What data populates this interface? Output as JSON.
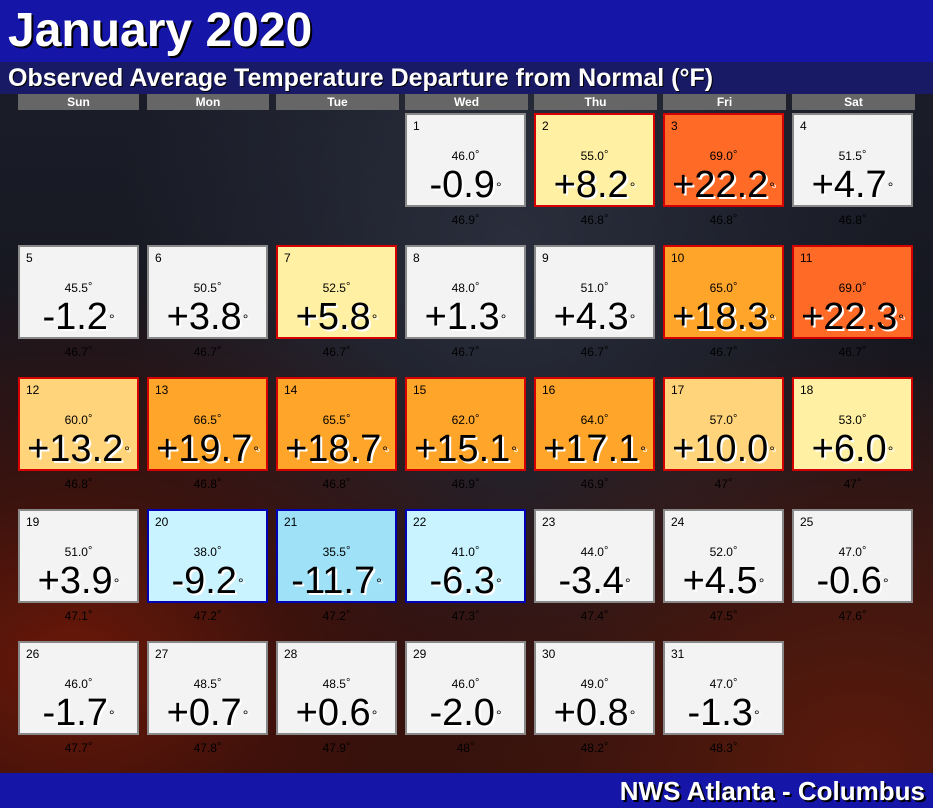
{
  "header": {
    "title": "January 2020",
    "subtitle": "Observed Average Temperature Departure from Normal (°F)"
  },
  "weekdays": [
    "Sun",
    "Mon",
    "Tue",
    "Wed",
    "Thu",
    "Fri",
    "Sat"
  ],
  "degree_symbol": "°",
  "footer": {
    "credit": "NWS Atlanta - Columbus"
  },
  "colors": {
    "neutral": "#f3f3f3",
    "warm_light": "#fff0a3",
    "warm_med": "#ffd47a",
    "warm_orange": "#ffa52a",
    "hot": "#ff6a26",
    "cool_light": "#c9f3ff",
    "cool_med": "#9fe2f7",
    "border_warm": "#d40000",
    "border_cool": "#0000b4",
    "border_neutral": "#888888",
    "title_bar": "#1515a8",
    "subtitle_bar": "#191a66"
  },
  "first_weekday_index": 3,
  "days": [
    {
      "day": "1",
      "observed": "46.0",
      "departure": "-0.9",
      "normal": "46.9",
      "category": "neutral"
    },
    {
      "day": "2",
      "observed": "55.0",
      "departure": "+8.2",
      "normal": "46.8",
      "category": "warm_light"
    },
    {
      "day": "3",
      "observed": "69.0",
      "departure": "+22.2",
      "normal": "46.8",
      "category": "hot"
    },
    {
      "day": "4",
      "observed": "51.5",
      "departure": "+4.7",
      "normal": "46.8",
      "category": "neutral"
    },
    {
      "day": "5",
      "observed": "45.5",
      "departure": "-1.2",
      "normal": "46.7",
      "category": "neutral"
    },
    {
      "day": "6",
      "observed": "50.5",
      "departure": "+3.8",
      "normal": "46.7",
      "category": "neutral"
    },
    {
      "day": "7",
      "observed": "52.5",
      "departure": "+5.8",
      "normal": "46.7",
      "category": "warm_light"
    },
    {
      "day": "8",
      "observed": "48.0",
      "departure": "+1.3",
      "normal": "46.7",
      "category": "neutral"
    },
    {
      "day": "9",
      "observed": "51.0",
      "departure": "+4.3",
      "normal": "46.7",
      "category": "neutral"
    },
    {
      "day": "10",
      "observed": "65.0",
      "departure": "+18.3",
      "normal": "46.7",
      "category": "warm_orange"
    },
    {
      "day": "11",
      "observed": "69.0",
      "departure": "+22.3",
      "normal": "46.7",
      "category": "hot"
    },
    {
      "day": "12",
      "observed": "60.0",
      "departure": "+13.2",
      "normal": "46.8",
      "category": "warm_med"
    },
    {
      "day": "13",
      "observed": "66.5",
      "departure": "+19.7",
      "normal": "46.8",
      "category": "warm_orange"
    },
    {
      "day": "14",
      "observed": "65.5",
      "departure": "+18.7",
      "normal": "46.8",
      "category": "warm_orange"
    },
    {
      "day": "15",
      "observed": "62.0",
      "departure": "+15.1",
      "normal": "46.9",
      "category": "warm_orange"
    },
    {
      "day": "16",
      "observed": "64.0",
      "departure": "+17.1",
      "normal": "46.9",
      "category": "warm_orange"
    },
    {
      "day": "17",
      "observed": "57.0",
      "departure": "+10.0",
      "normal": "47",
      "category": "warm_med"
    },
    {
      "day": "18",
      "observed": "53.0",
      "departure": "+6.0",
      "normal": "47",
      "category": "warm_light"
    },
    {
      "day": "19",
      "observed": "51.0",
      "departure": "+3.9",
      "normal": "47.1",
      "category": "neutral"
    },
    {
      "day": "20",
      "observed": "38.0",
      "departure": "-9.2",
      "normal": "47.2",
      "category": "cool_light"
    },
    {
      "day": "21",
      "observed": "35.5",
      "departure": "-11.7",
      "normal": "47.2",
      "category": "cool_med"
    },
    {
      "day": "22",
      "observed": "41.0",
      "departure": "-6.3",
      "normal": "47.3",
      "category": "cool_light"
    },
    {
      "day": "23",
      "observed": "44.0",
      "departure": "-3.4",
      "normal": "47.4",
      "category": "neutral"
    },
    {
      "day": "24",
      "observed": "52.0",
      "departure": "+4.5",
      "normal": "47.5",
      "category": "neutral"
    },
    {
      "day": "25",
      "observed": "47.0",
      "departure": "-0.6",
      "normal": "47.6",
      "category": "neutral"
    },
    {
      "day": "26",
      "observed": "46.0",
      "departure": "-1.7",
      "normal": "47.7",
      "category": "neutral"
    },
    {
      "day": "27",
      "observed": "48.5",
      "departure": "+0.7",
      "normal": "47.8",
      "category": "neutral"
    },
    {
      "day": "28",
      "observed": "48.5",
      "departure": "+0.6",
      "normal": "47.9",
      "category": "neutral"
    },
    {
      "day": "29",
      "observed": "46.0",
      "departure": "-2.0",
      "normal": "48",
      "category": "neutral"
    },
    {
      "day": "30",
      "observed": "49.0",
      "departure": "+0.8",
      "normal": "48.2",
      "category": "neutral"
    },
    {
      "day": "31",
      "observed": "47.0",
      "departure": "-1.3",
      "normal": "48.3",
      "category": "neutral"
    }
  ]
}
